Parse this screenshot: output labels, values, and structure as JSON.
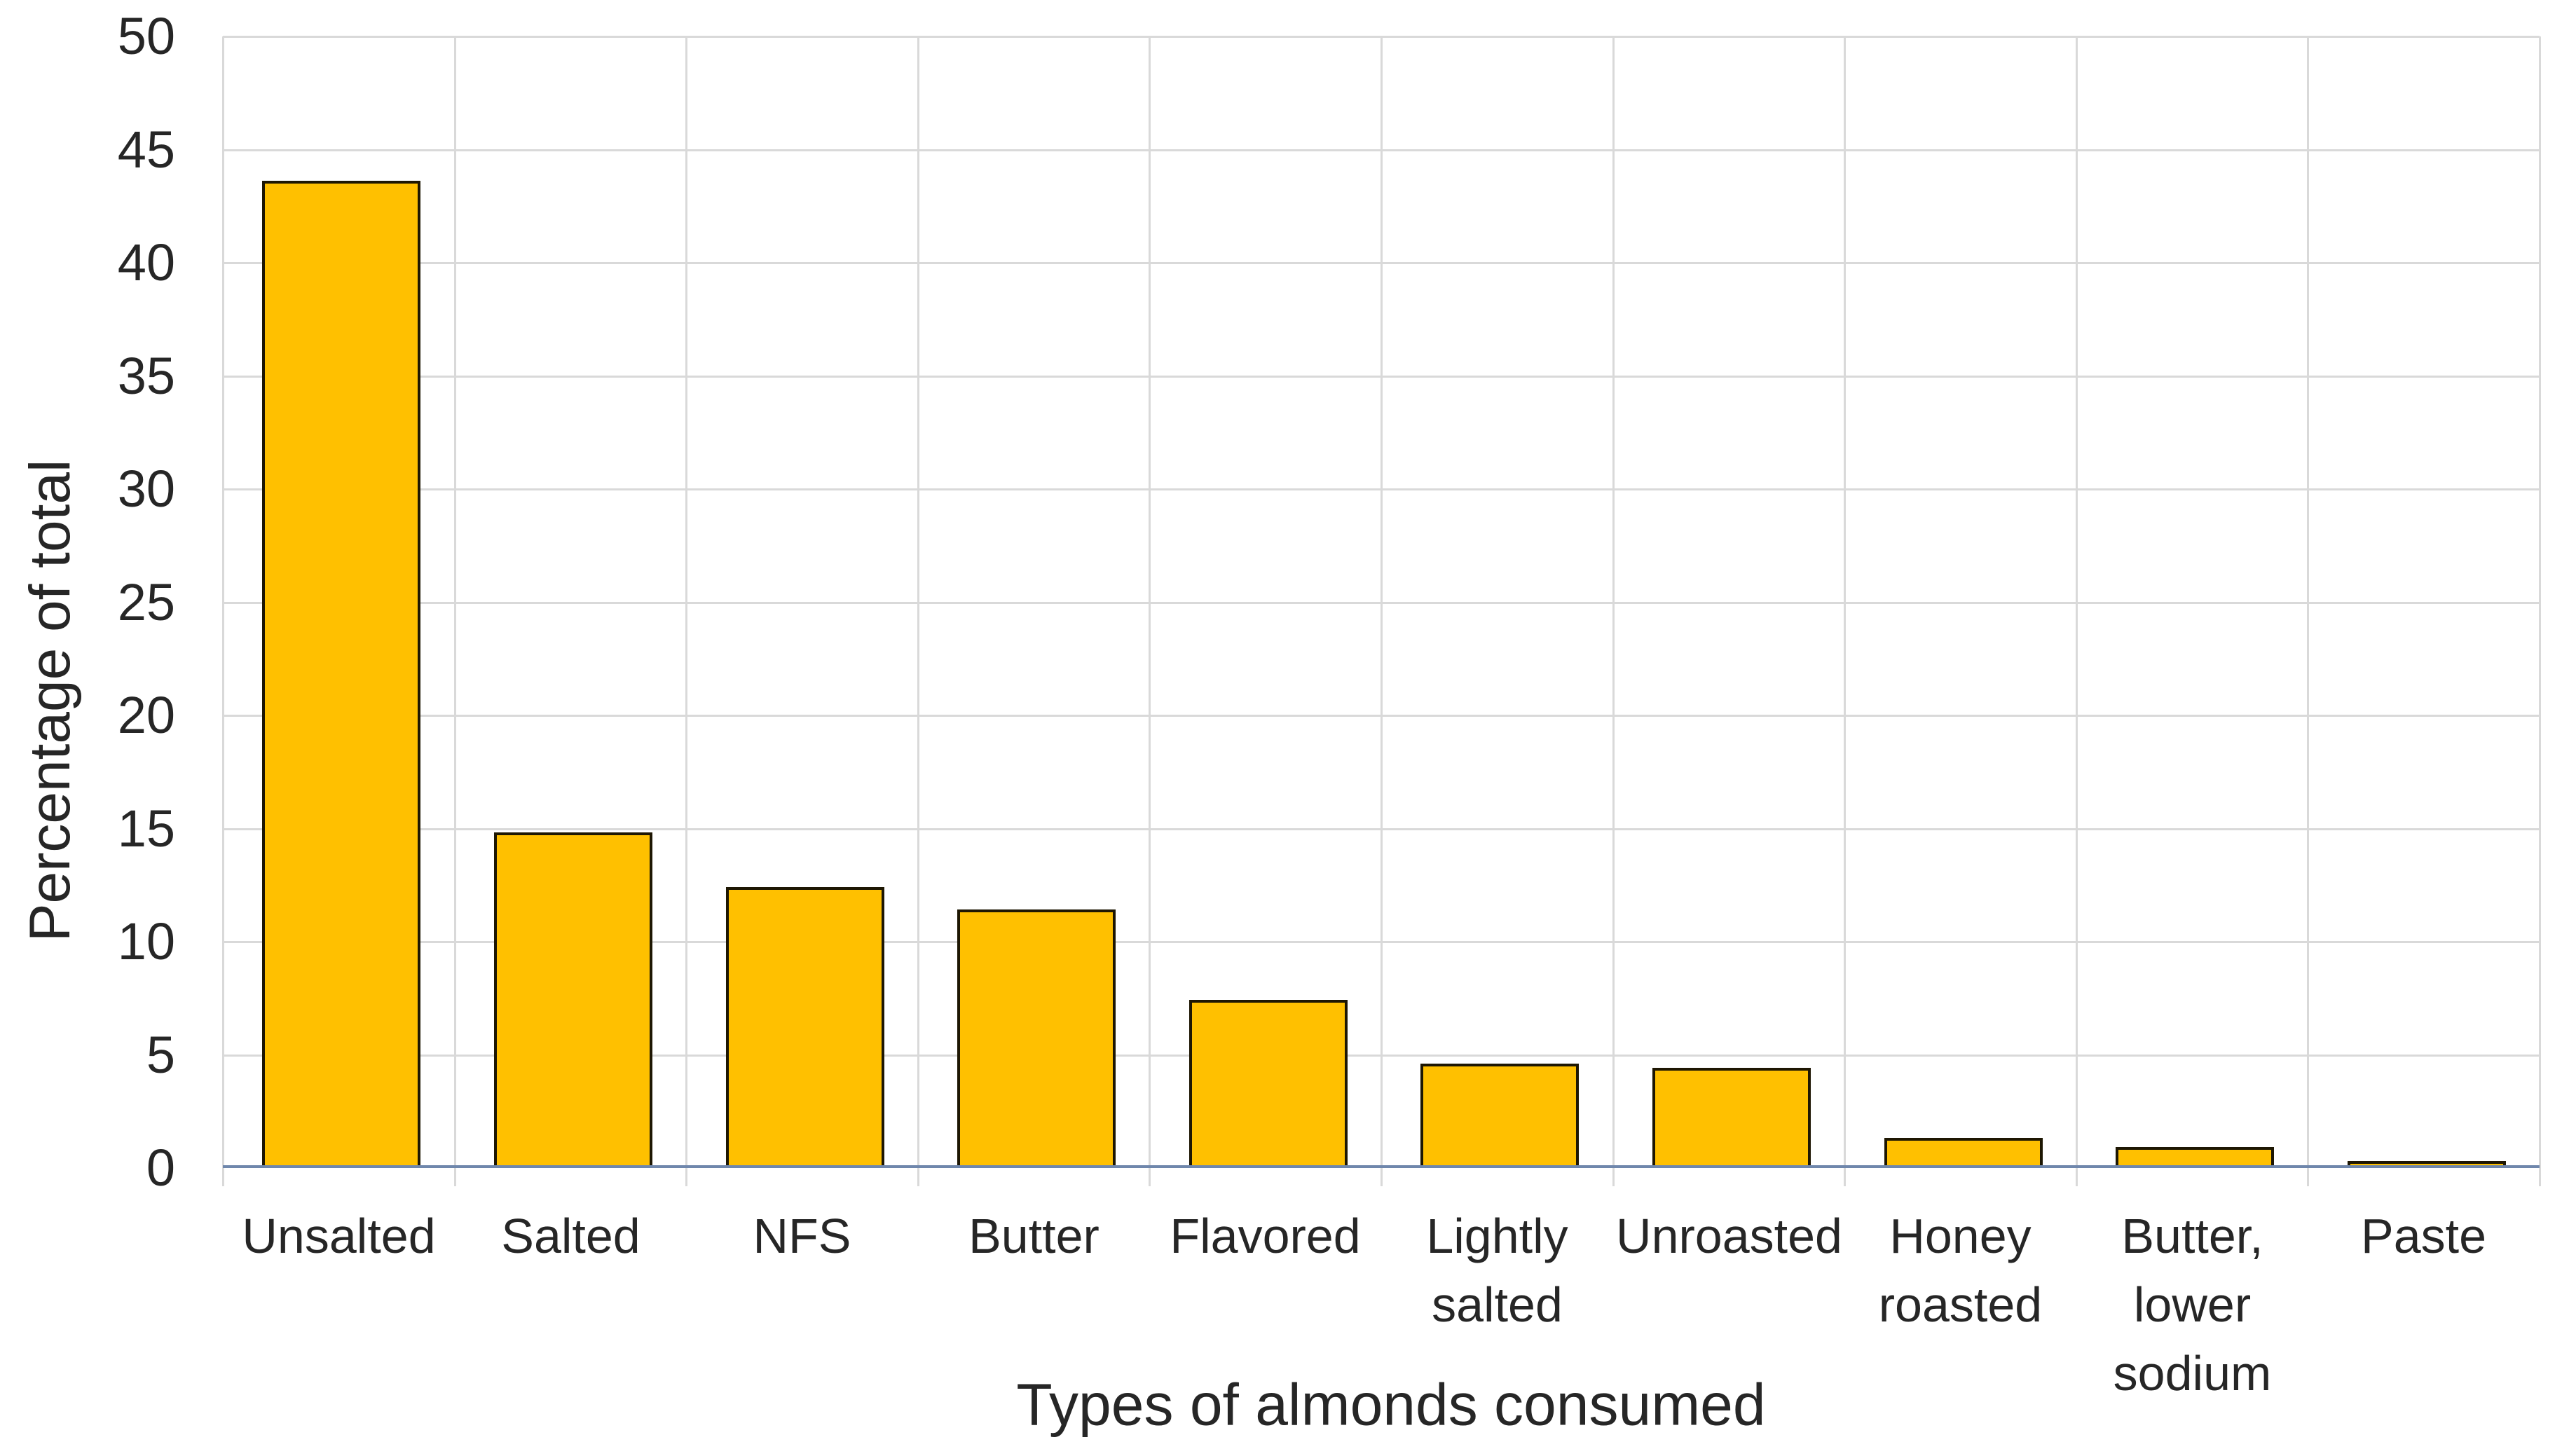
{
  "chart_data": {
    "type": "bar",
    "title": "",
    "xlabel": "Types of almonds consumed",
    "ylabel": "Percentage of total",
    "categories": [
      "Unsalted",
      "Salted",
      "NFS",
      "Butter",
      "Flavored",
      "Lightly salted",
      "Unroasted",
      "Honey roasted",
      "Butter, lower sodium",
      "Paste"
    ],
    "category_label_lines": [
      [
        "Unsalted"
      ],
      [
        "Salted"
      ],
      [
        "NFS"
      ],
      [
        "Butter"
      ],
      [
        "Flavored"
      ],
      [
        "Lightly",
        "salted"
      ],
      [
        "Unroasted"
      ],
      [
        "Honey",
        "roasted"
      ],
      [
        "Butter,",
        "lower",
        "sodium"
      ],
      [
        "Paste"
      ]
    ],
    "values": [
      43.5,
      14.7,
      12.3,
      11.3,
      7.3,
      4.5,
      4.3,
      1.2,
      0.8,
      0.1
    ],
    "ylim": [
      0,
      50
    ],
    "ytick_step": 5,
    "ytick_labels": [
      "0",
      "5",
      "10",
      "15",
      "20",
      "25",
      "30",
      "35",
      "40",
      "45",
      "50"
    ],
    "grid": true,
    "legend_position": "none"
  },
  "colors": {
    "bar_fill": "#FFC000",
    "bar_outline": "#1E1703",
    "gridline": "#D9D9D9",
    "axis_line": "#6F87AC",
    "text": "#262626",
    "background": "#FFFFFF"
  }
}
